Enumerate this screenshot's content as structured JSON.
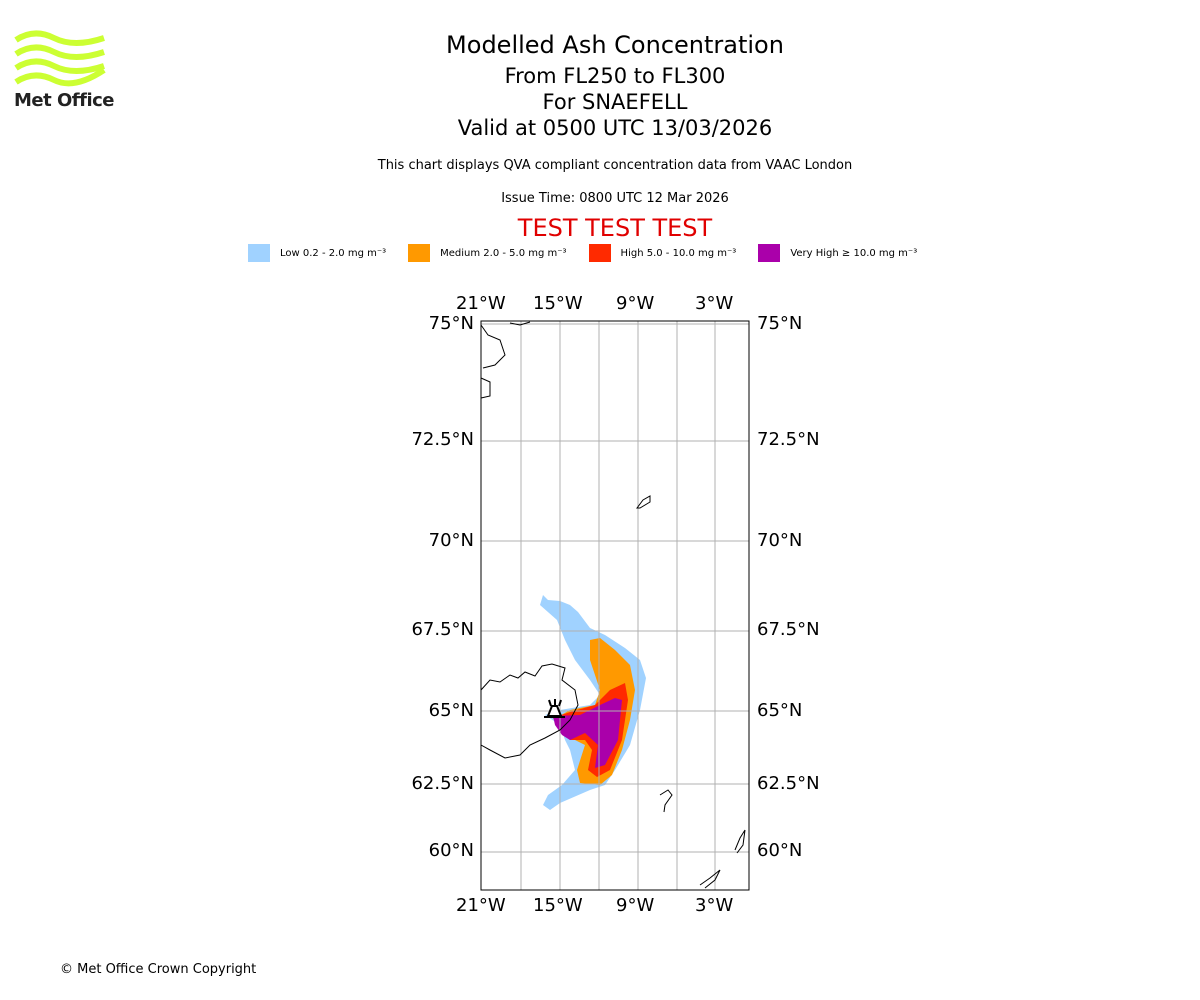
{
  "logo": {
    "text": "Met Office",
    "color": "#ccff33"
  },
  "title": "Modelled Ash Concentration",
  "subtitle_levels": "From FL250 to FL300",
  "subtitle_volcano": "For SNAEFELL",
  "valid_time": "Valid at 0500 UTC 13/03/2026",
  "description": "This chart displays QVA compliant concentration data from VAAC London",
  "issue_time": "Issue Time: 0800 UTC 12 Mar 2026",
  "test_banner": "TEST TEST TEST",
  "legend": [
    {
      "label": "Low 0.2 - 2.0 mg m⁻³",
      "color": "#a0d2ff"
    },
    {
      "label": "Medium 2.0 - 5.0 mg m⁻³",
      "color": "#ff9900"
    },
    {
      "label": "High 5.0 - 10.0 mg m⁻³",
      "color": "#ff2a00"
    },
    {
      "label": "Very High ≥ 10.0 mg m⁻³",
      "color": "#aa00aa"
    }
  ],
  "map": {
    "lon_labels": [
      "21°W",
      "15°W",
      "9°W",
      "3°W"
    ],
    "lat_labels": [
      "75°N",
      "72.5°N",
      "70°N",
      "67.5°N",
      "65°N",
      "62.5°N",
      "60°N"
    ],
    "volcano_marker": "volcano-icon"
  },
  "copyright": "© Met Office Crown Copyright"
}
